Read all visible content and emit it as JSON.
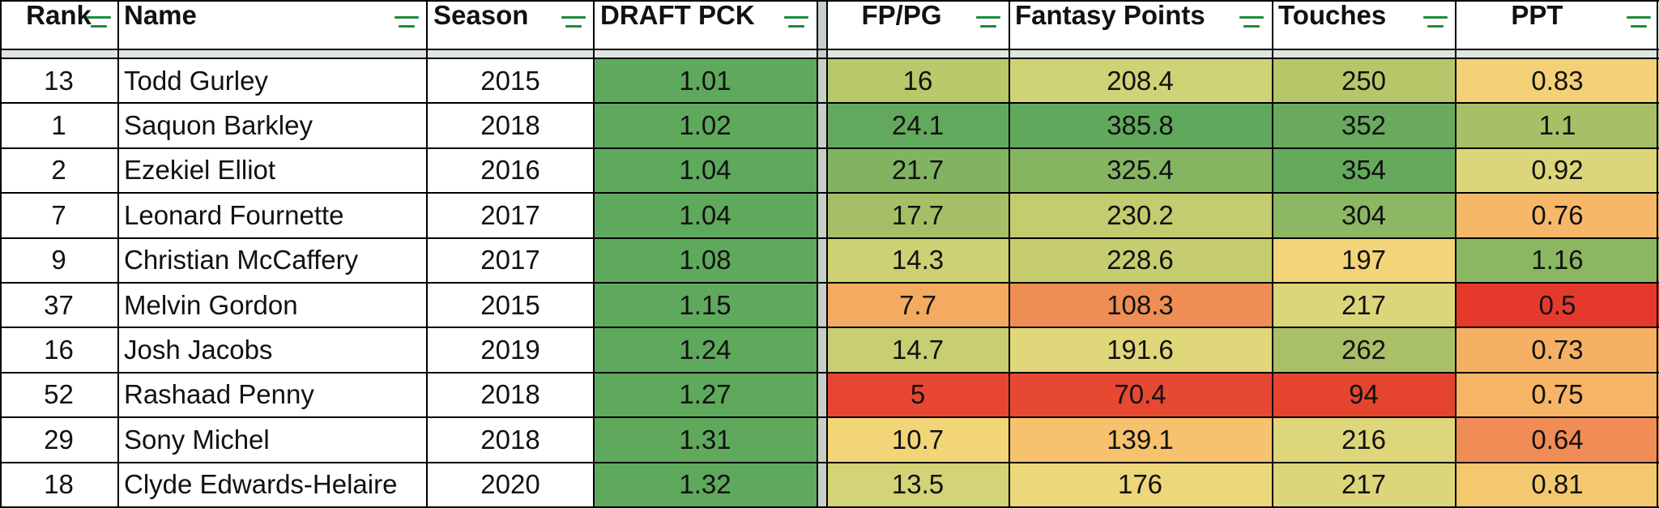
{
  "headers": {
    "rank": "Rank",
    "name": "Name",
    "season": "Season",
    "draft_pick": "DRAFT PCK",
    "fppg": "FP/PG",
    "fantasy_points": "Fantasy Points",
    "touches": "Touches",
    "ppt": "PPT"
  },
  "filter_icon": "filter-icon",
  "rows": [
    {
      "rank": "13",
      "name": "Todd Gurley",
      "season": "2015",
      "draft_pick": "1.01",
      "fppg": "16",
      "fantasy_points": "208.4",
      "touches": "250",
      "ppt": "0.83",
      "colors": {
        "draft_pick": "#5ea95c",
        "fppg": "#b8c86a",
        "fantasy_points": "#cfd375",
        "touches": "#b6c76a",
        "ppt": "#f4d076"
      }
    },
    {
      "rank": "1",
      "name": "Saquon Barkley",
      "season": "2018",
      "draft_pick": "1.02",
      "fppg": "24.1",
      "fantasy_points": "385.8",
      "touches": "352",
      "ppt": "1.1",
      "colors": {
        "draft_pick": "#5ea95c",
        "fppg": "#63a95d",
        "fantasy_points": "#5fa85c",
        "touches": "#6aaa5e",
        "ppt": "#a7bf66"
      }
    },
    {
      "rank": "2",
      "name": "Ezekiel Elliot",
      "season": "2016",
      "draft_pick": "1.04",
      "fppg": "21.7",
      "fantasy_points": "325.4",
      "touches": "354",
      "ppt": "0.92",
      "colors": {
        "draft_pick": "#5ea95c",
        "fppg": "#81b360",
        "fantasy_points": "#86b561",
        "touches": "#65a95d",
        "ppt": "#dcd67a"
      }
    },
    {
      "rank": "7",
      "name": "Leonard Fournette",
      "season": "2017",
      "draft_pick": "1.04",
      "fppg": "17.7",
      "fantasy_points": "230.2",
      "touches": "304",
      "ppt": "0.76",
      "colors": {
        "draft_pick": "#5ea95c",
        "fppg": "#a6bf66",
        "fantasy_points": "#c3cc6f",
        "touches": "#8cb763",
        "ppt": "#f6b868"
      }
    },
    {
      "rank": "9",
      "name": "Christian McCaffery",
      "season": "2017",
      "draft_pick": "1.08",
      "fppg": "14.3",
      "fantasy_points": "228.6",
      "touches": "197",
      "ppt": "1.16",
      "colors": {
        "draft_pick": "#5ea95c",
        "fppg": "#cdd173",
        "fantasy_points": "#c6cd70",
        "touches": "#f3d478",
        "ppt": "#8cb762"
      }
    },
    {
      "rank": "37",
      "name": "Melvin Gordon",
      "season": "2015",
      "draft_pick": "1.15",
      "fppg": "7.7",
      "fantasy_points": "108.3",
      "touches": "217",
      "ppt": "0.5",
      "colors": {
        "draft_pick": "#5ea95c",
        "fppg": "#f5aa62",
        "fantasy_points": "#ee8e54",
        "touches": "#dcd67a",
        "ppt": "#e5392c"
      }
    },
    {
      "rank": "16",
      "name": "Josh Jacobs",
      "season": "2019",
      "draft_pick": "1.24",
      "fppg": "14.7",
      "fantasy_points": "191.6",
      "touches": "262",
      "ppt": "0.73",
      "colors": {
        "draft_pick": "#5ea95c",
        "fppg": "#c8ce72",
        "fantasy_points": "#e0d67a",
        "touches": "#a9c067",
        "ppt": "#f5b064"
      }
    },
    {
      "rank": "52",
      "name": "Rashaad Penny",
      "season": "2018",
      "draft_pick": "1.27",
      "fppg": "5",
      "fantasy_points": "70.4",
      "touches": "94",
      "ppt": "0.75",
      "colors": {
        "draft_pick": "#5ea95c",
        "fppg": "#e74732",
        "fantasy_points": "#e64832",
        "touches": "#e5452f",
        "ppt": "#f6b566"
      }
    },
    {
      "rank": "29",
      "name": "Sony Michel",
      "season": "2018",
      "draft_pick": "1.31",
      "fppg": "10.7",
      "fantasy_points": "139.1",
      "touches": "216",
      "ppt": "0.64",
      "colors": {
        "draft_pick": "#5ea95c",
        "fppg": "#f1d577",
        "fantasy_points": "#f6c26d",
        "touches": "#ddd67b",
        "ppt": "#f08c55"
      }
    },
    {
      "rank": "18",
      "name": "Clyde Edwards-Helaire",
      "season": "2020",
      "draft_pick": "1.32",
      "fppg": "13.5",
      "fantasy_points": "176",
      "touches": "217",
      "ppt": "0.81",
      "colors": {
        "draft_pick": "#5ea95c",
        "fppg": "#d3d377",
        "fantasy_points": "#ecd77a",
        "touches": "#dcd67a",
        "ppt": "#f3c86f"
      }
    }
  ]
}
